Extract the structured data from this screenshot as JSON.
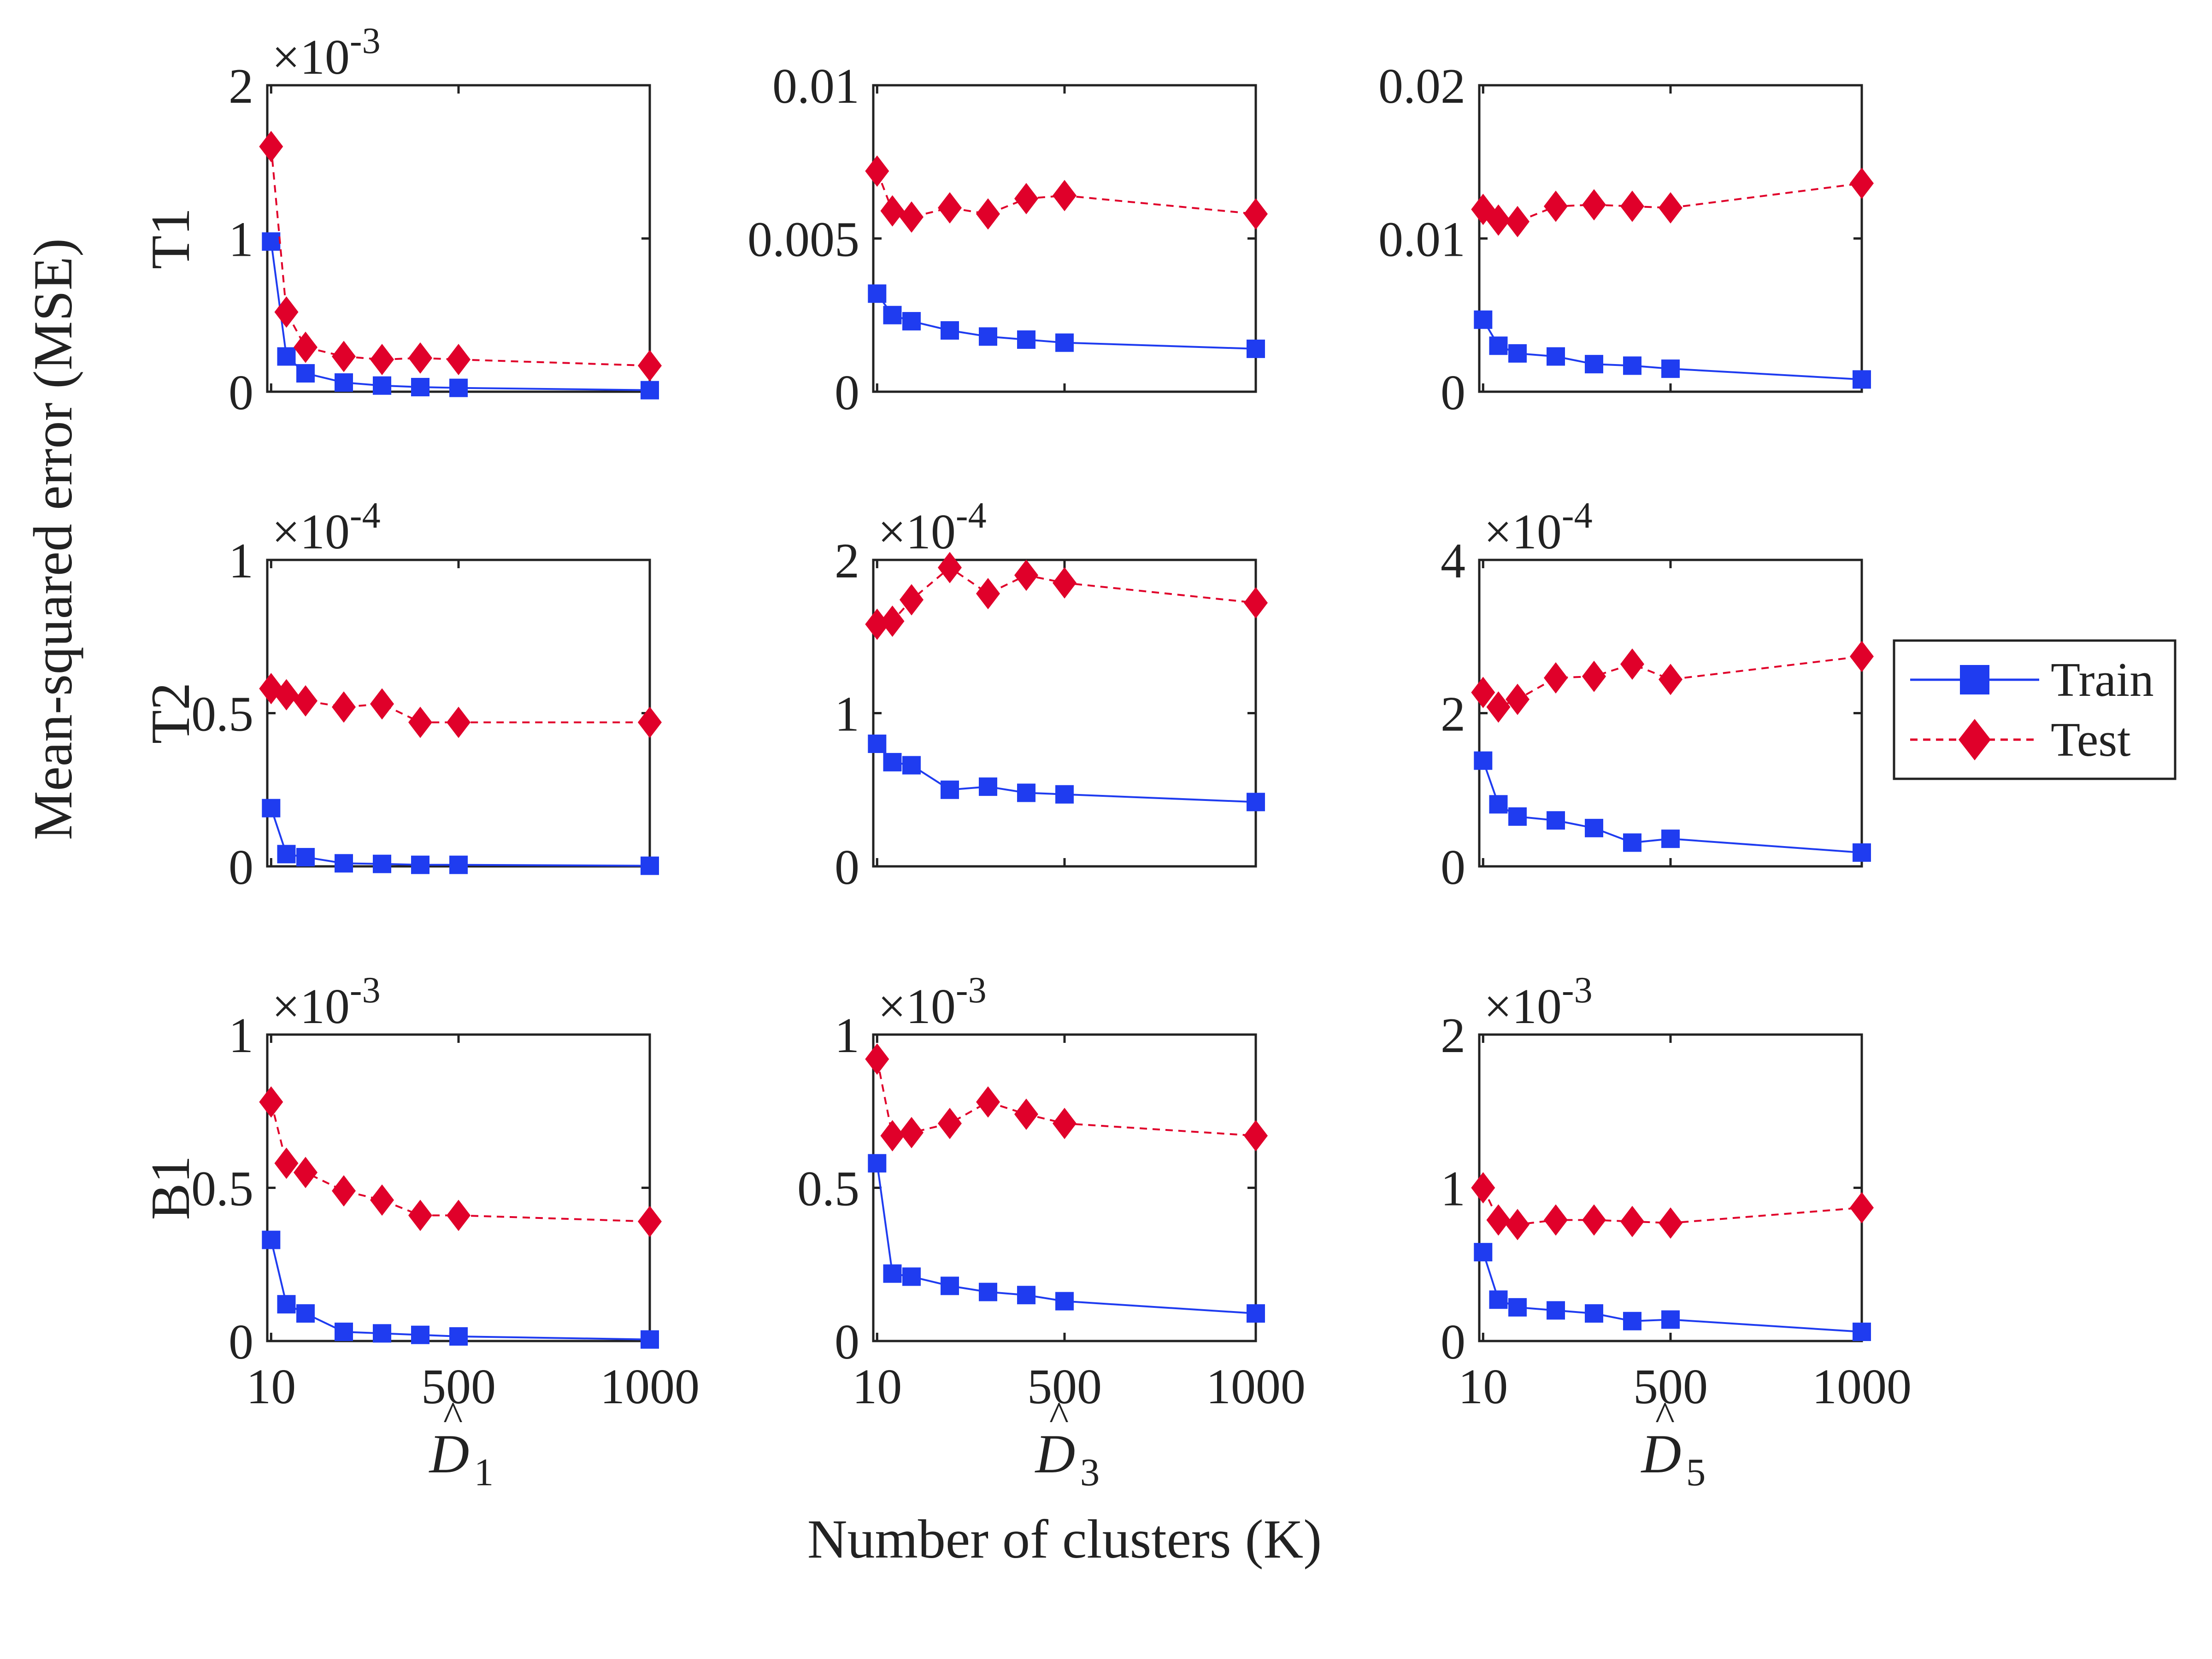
{
  "figure": {
    "y_axis_label": "Mean-squared error (MSE)",
    "x_axis_label": "Number of clusters (K)",
    "column_labels": [
      {
        "base": "D",
        "sub": "1"
      },
      {
        "base": "D",
        "sub": "3"
      },
      {
        "base": "D",
        "sub": "5"
      }
    ],
    "row_labels": [
      "T1",
      "T2",
      "B1"
    ],
    "x_tick_labels": [
      "10",
      "500",
      "1000"
    ],
    "legend": {
      "train": "Train",
      "test": "Test"
    },
    "colors": {
      "train": "#1f3cf0",
      "test": "#e0002a",
      "axis": "#222222"
    }
  },
  "chart_data": [
    {
      "type": "line",
      "row": "T1",
      "column": "D1",
      "x": [
        10,
        50,
        100,
        200,
        300,
        400,
        500,
        1000
      ],
      "xlim": [
        0,
        1000
      ],
      "ylim": [
        0,
        0.002
      ],
      "exponent": "-3",
      "y_tick_labels": [
        "0",
        "1",
        "2"
      ],
      "series": [
        {
          "name": "Train",
          "values": [
            0.00098,
            0.00023,
            0.00012,
            6e-05,
            4e-05,
            3e-05,
            2.5e-05,
            1e-05
          ]
        },
        {
          "name": "Test",
          "values": [
            0.0016,
            0.00052,
            0.00029,
            0.00023,
            0.00021,
            0.00022,
            0.00021,
            0.00017
          ]
        }
      ]
    },
    {
      "type": "line",
      "row": "T1",
      "column": "D3",
      "x": [
        10,
        50,
        100,
        200,
        300,
        400,
        500,
        1000
      ],
      "xlim": [
        0,
        1000
      ],
      "ylim": [
        0,
        0.01
      ],
      "exponent": "",
      "y_tick_labels": [
        "0",
        "0.005",
        "0.01"
      ],
      "series": [
        {
          "name": "Train",
          "values": [
            0.0032,
            0.0025,
            0.0023,
            0.002,
            0.0018,
            0.0017,
            0.0016,
            0.0014
          ]
        },
        {
          "name": "Test",
          "values": [
            0.0072,
            0.0059,
            0.0057,
            0.006,
            0.0058,
            0.0063,
            0.0064,
            0.0058
          ]
        }
      ]
    },
    {
      "type": "line",
      "row": "T1",
      "column": "D5",
      "x": [
        10,
        50,
        100,
        200,
        300,
        400,
        500,
        1000
      ],
      "xlim": [
        0,
        1000
      ],
      "ylim": [
        0,
        0.02
      ],
      "exponent": "",
      "y_tick_labels": [
        "0",
        "0.01",
        "0.02"
      ],
      "series": [
        {
          "name": "Train",
          "values": [
            0.0047,
            0.003,
            0.0025,
            0.0023,
            0.0018,
            0.0017,
            0.0015,
            0.0008
          ]
        },
        {
          "name": "Test",
          "values": [
            0.0119,
            0.0112,
            0.0111,
            0.0121,
            0.0122,
            0.0121,
            0.012,
            0.0136
          ]
        }
      ]
    },
    {
      "type": "line",
      "row": "T2",
      "column": "D1",
      "x": [
        10,
        50,
        100,
        200,
        300,
        400,
        500,
        1000
      ],
      "xlim": [
        0,
        1000
      ],
      "ylim": [
        0,
        0.0001
      ],
      "exponent": "-4",
      "y_tick_labels": [
        "0",
        "0.5",
        "1"
      ],
      "series": [
        {
          "name": "Train",
          "values": [
            1.9e-05,
            4e-06,
            3e-06,
            1e-06,
            8e-07,
            5e-07,
            5e-07,
            2e-07
          ]
        },
        {
          "name": "Test",
          "values": [
            5.8e-05,
            5.6e-05,
            5.4e-05,
            5.2e-05,
            5.3e-05,
            4.7e-05,
            4.7e-05,
            4.7e-05
          ]
        }
      ]
    },
    {
      "type": "line",
      "row": "T2",
      "column": "D3",
      "x": [
        10,
        50,
        100,
        200,
        300,
        400,
        500,
        1000
      ],
      "xlim": [
        0,
        1000
      ],
      "ylim": [
        0,
        0.0002
      ],
      "exponent": "-4",
      "y_tick_labels": [
        "0",
        "1",
        "2"
      ],
      "series": [
        {
          "name": "Train",
          "values": [
            8e-05,
            6.8e-05,
            6.6e-05,
            5e-05,
            5.2e-05,
            4.8e-05,
            4.7e-05,
            4.2e-05
          ]
        },
        {
          "name": "Test",
          "values": [
            0.000158,
            0.00016,
            0.000174,
            0.000195,
            0.000178,
            0.00019,
            0.000185,
            0.000172
          ]
        }
      ]
    },
    {
      "type": "line",
      "row": "T2",
      "column": "D5",
      "x": [
        10,
        50,
        100,
        200,
        300,
        400,
        500,
        1000
      ],
      "xlim": [
        0,
        1000
      ],
      "ylim": [
        0,
        0.0004
      ],
      "exponent": "-4",
      "y_tick_labels": [
        "0",
        "2",
        "4"
      ],
      "series": [
        {
          "name": "Train",
          "values": [
            0.000138,
            8.1e-05,
            6.5e-05,
            6e-05,
            5e-05,
            3.1e-05,
            3.6e-05,
            1.8e-05
          ]
        },
        {
          "name": "Test",
          "values": [
            0.000227,
            0.000208,
            0.000218,
            0.000246,
            0.000248,
            0.000264,
            0.000244,
            0.000274
          ]
        }
      ]
    },
    {
      "type": "line",
      "row": "B1",
      "column": "D1",
      "x": [
        10,
        50,
        100,
        200,
        300,
        400,
        500,
        1000
      ],
      "xlim": [
        0,
        1000
      ],
      "ylim": [
        0,
        0.001
      ],
      "exponent": "-3",
      "y_tick_labels": [
        "0",
        "0.5",
        "1"
      ],
      "series": [
        {
          "name": "Train",
          "values": [
            0.00033,
            0.00012,
            9e-05,
            3e-05,
            2.5e-05,
            2e-05,
            1.5e-05,
            5e-06
          ]
        },
        {
          "name": "Test",
          "values": [
            0.00078,
            0.00058,
            0.00055,
            0.00049,
            0.00046,
            0.00041,
            0.00041,
            0.00039
          ]
        }
      ]
    },
    {
      "type": "line",
      "row": "B1",
      "column": "D3",
      "x": [
        10,
        50,
        100,
        200,
        300,
        400,
        500,
        1000
      ],
      "xlim": [
        0,
        1000
      ],
      "ylim": [
        0,
        0.001
      ],
      "exponent": "-3",
      "y_tick_labels": [
        "0",
        "0.5",
        "1"
      ],
      "series": [
        {
          "name": "Train",
          "values": [
            0.00058,
            0.00022,
            0.00021,
            0.00018,
            0.00016,
            0.00015,
            0.00013,
            9e-05
          ]
        },
        {
          "name": "Test",
          "values": [
            0.00092,
            0.00067,
            0.00068,
            0.00071,
            0.00078,
            0.00074,
            0.00071,
            0.00067
          ]
        }
      ]
    },
    {
      "type": "line",
      "row": "B1",
      "column": "D5",
      "x": [
        10,
        50,
        100,
        200,
        300,
        400,
        500,
        1000
      ],
      "xlim": [
        0,
        1000
      ],
      "ylim": [
        0,
        0.002
      ],
      "exponent": "-3",
      "y_tick_labels": [
        "0",
        "1",
        "2"
      ],
      "series": [
        {
          "name": "Train",
          "values": [
            0.00058,
            0.00027,
            0.00022,
            0.0002,
            0.00018,
            0.00013,
            0.00014,
            6e-05
          ]
        },
        {
          "name": "Test",
          "values": [
            0.001,
            0.00079,
            0.00076,
            0.00079,
            0.00079,
            0.00078,
            0.00077,
            0.00087
          ]
        }
      ]
    }
  ]
}
